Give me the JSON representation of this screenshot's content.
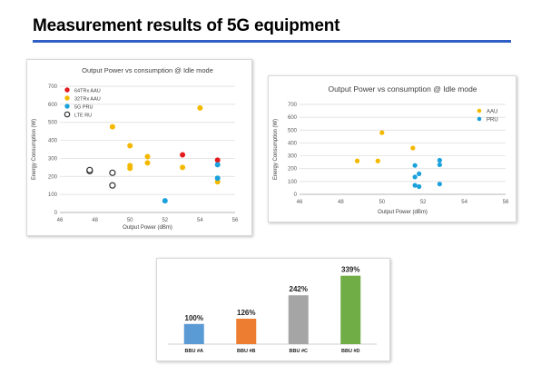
{
  "page": {
    "title": "Measurement results of 5G equipment",
    "accent_color": "#2f5fc4"
  },
  "chart_data": [
    {
      "type": "scatter",
      "title": "Output Power vs consumption @ Idle mode",
      "xlabel": "Output Power (dBm)",
      "ylabel": "Energy Consumption (W)",
      "xlim": [
        46,
        56
      ],
      "ylim": [
        0,
        700
      ],
      "xticks": [
        46,
        48,
        50,
        52,
        54,
        56
      ],
      "yticks": [
        0,
        100,
        200,
        300,
        400,
        500,
        600,
        700
      ],
      "grid": true,
      "legend_position": "top-left",
      "series": [
        {
          "name": "64TRx AAU",
          "color": "#e41a1c",
          "marker": "filled",
          "points": [
            [
              53,
              320
            ],
            [
              55,
              290
            ]
          ]
        },
        {
          "name": "32TRx AAU",
          "color": "#f5b800",
          "marker": "filled",
          "points": [
            [
              49,
              475
            ],
            [
              50,
              370
            ],
            [
              50,
              260
            ],
            [
              50,
              245
            ],
            [
              51,
              310
            ],
            [
              51,
              275
            ],
            [
              53,
              250
            ],
            [
              54,
              580
            ],
            [
              55,
              170
            ]
          ]
        },
        {
          "name": "5G    PRU",
          "color": "#1ba1dc",
          "marker": "filled",
          "points": [
            [
              52,
              65
            ],
            [
              55,
              265
            ],
            [
              55,
              190
            ]
          ]
        },
        {
          "name": "LTE    RU",
          "color": "#333333",
          "marker": "hollow",
          "points": [
            [
              47.7,
              230
            ],
            [
              47.7,
              235
            ],
            [
              49,
              220
            ],
            [
              49,
              150
            ]
          ]
        }
      ]
    },
    {
      "type": "scatter",
      "title": "Output Power vs consumption @ Idle mode",
      "xlabel": "Output Power (dBm)",
      "ylabel": "Energy Consumption (W)",
      "xlim": [
        46,
        56
      ],
      "ylim": [
        0,
        700
      ],
      "xticks": [
        46,
        48,
        50,
        52,
        54,
        56
      ],
      "yticks": [
        0,
        100,
        200,
        300,
        400,
        500,
        600,
        700
      ],
      "grid": true,
      "legend_position": "top-right",
      "series": [
        {
          "name": "AAU",
          "color": "#f5b800",
          "marker": "filled",
          "points": [
            [
              48.8,
              260
            ],
            [
              49.8,
              260
            ],
            [
              50,
              480
            ],
            [
              51.5,
              360
            ]
          ]
        },
        {
          "name": "PRU",
          "color": "#1ba1dc",
          "marker": "filled",
          "points": [
            [
              51.6,
              225
            ],
            [
              51.6,
              135
            ],
            [
              51.6,
              70
            ],
            [
              51.8,
              160
            ],
            [
              51.8,
              60
            ],
            [
              52.8,
              265
            ],
            [
              52.8,
              230
            ],
            [
              52.8,
              80
            ]
          ]
        }
      ]
    },
    {
      "type": "bar",
      "categories": [
        "BBU #A",
        "BBU #B",
        "BBU #C",
        "BBU #D"
      ],
      "values": [
        100,
        126,
        242,
        339
      ],
      "value_labels": [
        "100%",
        "126%",
        "242%",
        "339%"
      ],
      "colors": [
        "#5b9bd5",
        "#ed7d31",
        "#a5a5a5",
        "#70ad47"
      ],
      "ylim": [
        0,
        360
      ],
      "grid": false
    }
  ]
}
